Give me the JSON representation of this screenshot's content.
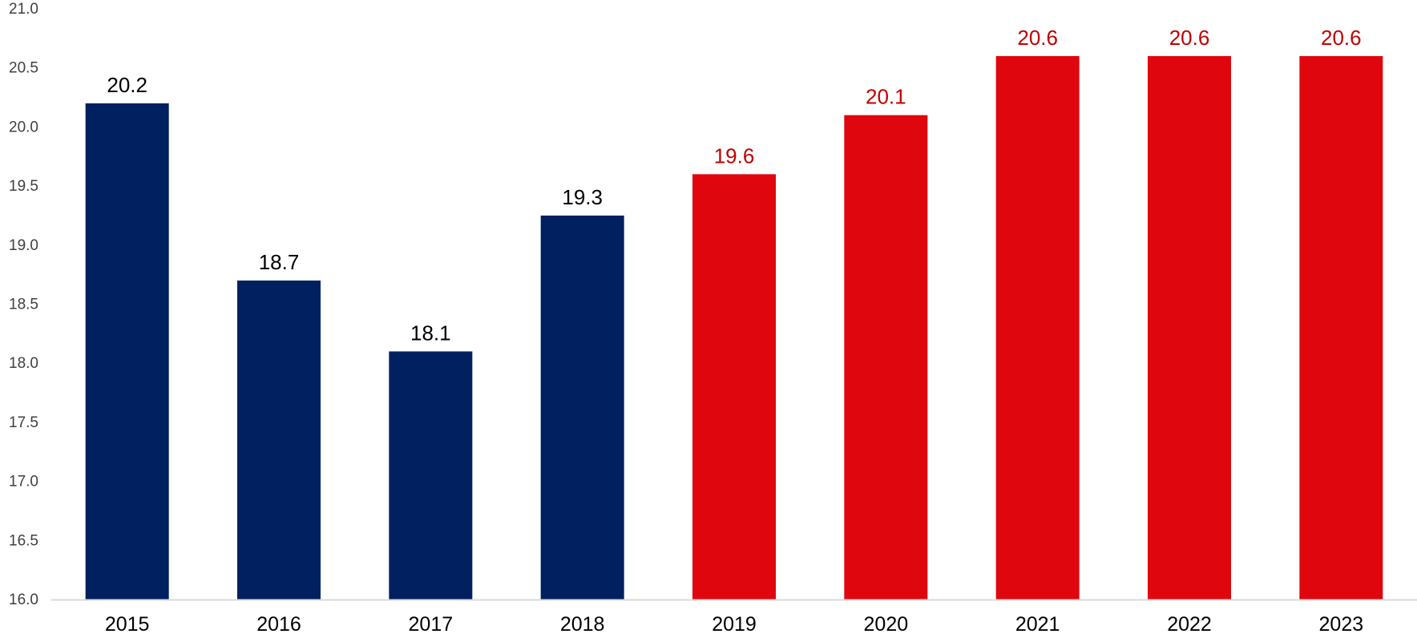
{
  "chart_data": {
    "type": "bar",
    "title": "",
    "xlabel": "",
    "ylabel": "",
    "categories": [
      "2015",
      "2016",
      "2017",
      "2018",
      "2019",
      "2020",
      "2021",
      "2022",
      "2023"
    ],
    "values": [
      20.2,
      18.7,
      18.1,
      19.25,
      19.6,
      20.1,
      20.6,
      20.6,
      20.6
    ],
    "data_labels": [
      "20.2",
      "18.7",
      "18.1",
      "19.3",
      "19.6",
      "20.1",
      "20.6",
      "20.6",
      "20.6"
    ],
    "bar_status": [
      "actual",
      "actual",
      "actual",
      "actual",
      "forecast",
      "forecast",
      "forecast",
      "forecast",
      "forecast"
    ],
    "ylim": [
      16.0,
      21.0
    ],
    "yticks": [
      "16.0",
      "16.5",
      "17.0",
      "17.5",
      "18.0",
      "18.5",
      "19.0",
      "19.5",
      "20.0",
      "20.5",
      "21.0"
    ],
    "grid": false,
    "legend": "none",
    "colors": {
      "actual_bar": "#002060",
      "forecast_bar": "#e0060e",
      "actual_label": "#000000",
      "forecast_label": "#c00000",
      "axis_text": "#404040",
      "axis_line": "#d9d9d9"
    }
  }
}
